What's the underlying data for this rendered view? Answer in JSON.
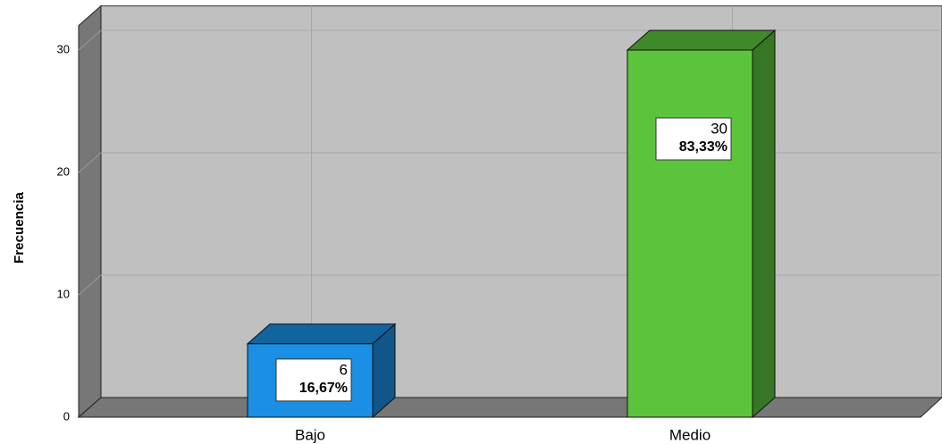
{
  "chart_data": {
    "type": "bar3d",
    "y_label": "Frecuencia",
    "categories": [
      "Bajo",
      "Medio"
    ],
    "values": [
      6,
      30
    ],
    "percent_values": [
      16.67,
      83.33
    ],
    "percent_labels": [
      "16,67%",
      "83,33%"
    ],
    "colors": [
      "#1a8fe3",
      "#5cc43c"
    ],
    "ylim": [
      0,
      32
    ],
    "yticks": [
      0,
      10,
      20,
      30
    ],
    "grid": true
  }
}
